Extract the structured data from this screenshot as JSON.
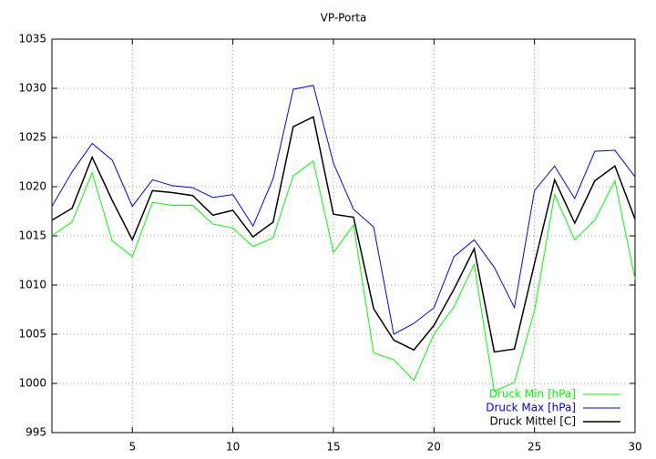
{
  "chart_data": {
    "type": "line",
    "title": "VP-Porta",
    "x": [
      1,
      2,
      3,
      4,
      5,
      6,
      7,
      8,
      9,
      10,
      11,
      12,
      13,
      14,
      15,
      16,
      17,
      18,
      19,
      20,
      21,
      22,
      23,
      24,
      25,
      26,
      27,
      28,
      29,
      30
    ],
    "series": [
      {
        "name": "Druck Min [hPa]",
        "color": "#00ff00",
        "values": [
          1015,
          1016.4,
          1021.4,
          1014.5,
          1012.9,
          1018.4,
          1018.1,
          1018.1,
          1016.2,
          1015.8,
          1013.9,
          1014.8,
          1021.1,
          1022.6,
          1013.3,
          1016.1,
          1003.1,
          1002.4,
          1000.3,
          1005,
          1007.8,
          1012.1,
          999.2,
          1000.1,
          1007.4,
          1019.2,
          1014.6,
          1016.6,
          1020.6,
          1010.6
        ]
      },
      {
        "name": "Druck Max [hPa]",
        "color": "#0000ff",
        "values": [
          1018,
          1021.5,
          1024.4,
          1022.7,
          1018,
          1020.7,
          1020.1,
          1019.9,
          1018.9,
          1019.2,
          1016,
          1020.8,
          1029.9,
          1030.3,
          1022.4,
          1017.7,
          1015.9,
          1005,
          1006.1,
          1007.7,
          1012.9,
          1014.6,
          1011.8,
          1007.7,
          1019.6,
          1022.1,
          1018.8,
          1023.6,
          1023.7,
          1021
        ]
      },
      {
        "name": "Druck Mittel [C]",
        "color": "#000000",
        "values": [
          1016.6,
          1017.8,
          1023,
          1018.6,
          1014.6,
          1019.6,
          1019.4,
          1019.1,
          1017.1,
          1017.6,
          1014.9,
          1016.4,
          1026.1,
          1027.1,
          1017.2,
          1016.9,
          1007.6,
          1004.4,
          1003.4,
          1005.9,
          1009.6,
          1013.7,
          1003.2,
          1003.5,
          1012.2,
          1020.7,
          1016.3,
          1020.6,
          1022.1,
          1016.7
        ]
      }
    ],
    "xlim": [
      1,
      30
    ],
    "xticks": [
      5,
      10,
      15,
      20,
      25,
      30
    ],
    "ylim": [
      995,
      1035
    ],
    "yticks": [
      995,
      1000,
      1005,
      1010,
      1015,
      1020,
      1025,
      1030,
      1035
    ],
    "grid": true,
    "legend": "bottom-right"
  }
}
